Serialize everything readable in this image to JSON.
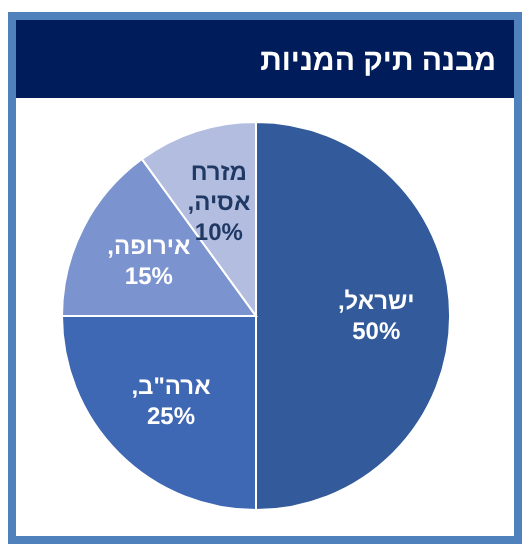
{
  "chart_data": {
    "type": "pie",
    "title": "מבנה תיק המניות",
    "categories": [
      "ישראל",
      "ארה\"ב",
      "אירופה",
      "מזרח אסיה"
    ],
    "values": [
      50,
      25,
      15,
      10
    ],
    "colors": [
      "#335a9a",
      "#3f68b4",
      "#7b93cf",
      "#b2bde0"
    ],
    "value_labels": [
      ", 50%",
      ", 25%",
      ", 15%",
      ", 10%"
    ]
  }
}
